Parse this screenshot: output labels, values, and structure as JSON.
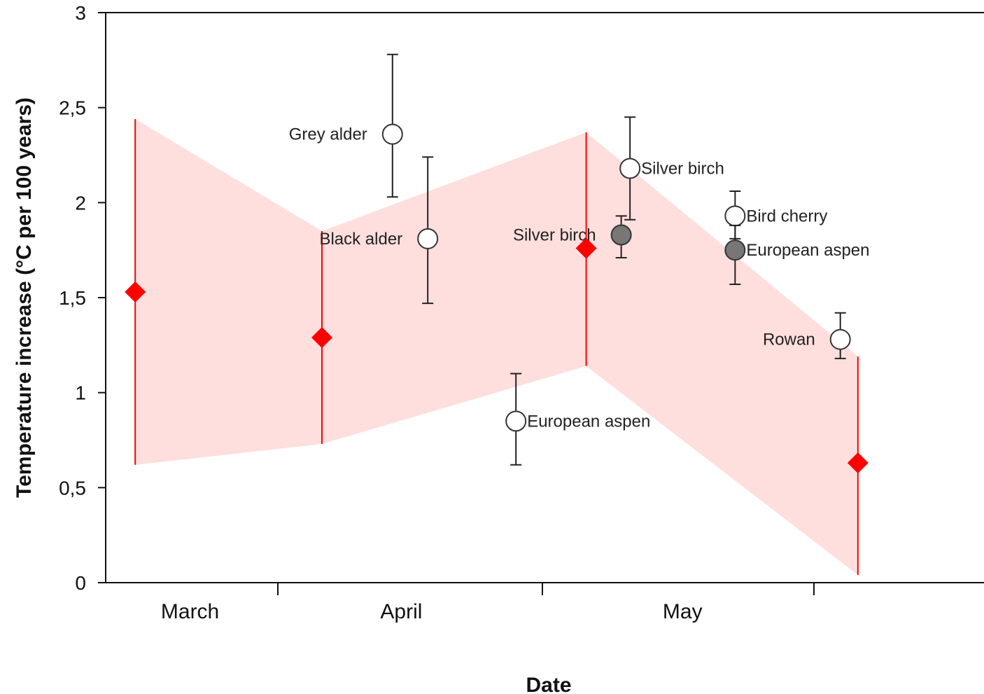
{
  "chart_data": {
    "type": "scatter",
    "title": "",
    "xlabel": "Date",
    "ylabel": "Temperature increase (°C per 100 years)",
    "ylim": [
      0,
      3
    ],
    "y_ticks": [
      {
        "value": 0,
        "label": "0"
      },
      {
        "value": 0.5,
        "label": "0,5"
      },
      {
        "value": 1,
        "label": "1"
      },
      {
        "value": 1.5,
        "label": "1,5"
      },
      {
        "value": 2,
        "label": "2"
      },
      {
        "value": 2.5,
        "label": "2,5"
      },
      {
        "value": 3,
        "label": "3"
      }
    ],
    "xlim": [
      "03-01",
      "05-31"
    ],
    "x_month_labels": [
      {
        "label": "March",
        "date": "03-16"
      },
      {
        "label": "April",
        "date": "04-15"
      },
      {
        "label": "May",
        "date": "05-17"
      }
    ],
    "x_boundaries": [
      "04-01",
      "05-01",
      "06-01"
    ],
    "grid": false,
    "temperature_band": {
      "color": "#ffdede",
      "points": [
        {
          "date": "03-06",
          "value": 1.53,
          "low": 0.62,
          "high": 2.44
        },
        {
          "date": "04-06",
          "value": 1.29,
          "low": 0.73,
          "high": 1.85
        },
        {
          "date": "05-06",
          "value": 1.76,
          "low": 1.14,
          "high": 2.37
        },
        {
          "date": "06-06",
          "value": 0.63,
          "low": 0.04,
          "high": 1.19
        }
      ]
    },
    "species": [
      {
        "label": "Grey alder",
        "date": "04-14",
        "value": 2.36,
        "low": 2.03,
        "high": 2.78,
        "filled": false,
        "label_side": "left"
      },
      {
        "label": "Black alder",
        "date": "04-18",
        "value": 1.81,
        "low": 1.47,
        "high": 2.24,
        "filled": false,
        "label_side": "left"
      },
      {
        "label": "European aspen",
        "date": "04-28",
        "value": 0.85,
        "low": 0.62,
        "high": 1.1,
        "filled": false,
        "label_side": "right"
      },
      {
        "label": "Silver birch",
        "date": "05-10",
        "value": 1.83,
        "low": 1.71,
        "high": 1.93,
        "filled": true,
        "label_side": "left"
      },
      {
        "label": "Silver birch",
        "date": "05-11",
        "value": 2.18,
        "low": 1.91,
        "high": 2.45,
        "filled": false,
        "label_side": "right"
      },
      {
        "label": "Bird cherry",
        "date": "05-23",
        "value": 1.93,
        "low": 1.81,
        "high": 2.06,
        "filled": false,
        "label_side": "right"
      },
      {
        "label": "European aspen",
        "date": "05-23",
        "value": 1.75,
        "low": 1.57,
        "high": 1.88,
        "filled": true,
        "label_side": "right"
      },
      {
        "label": "Rowan",
        "date": "06-04",
        "value": 1.28,
        "low": 1.18,
        "high": 1.42,
        "filled": false,
        "label_side": "left"
      }
    ],
    "colors": {
      "band_fill": "#ffdede",
      "diamond": "#ff0000",
      "band_line": "#ff0000",
      "open_marker_fill": "#ffffff",
      "filled_marker_fill": "#777777",
      "error_bar": "#222222"
    }
  }
}
